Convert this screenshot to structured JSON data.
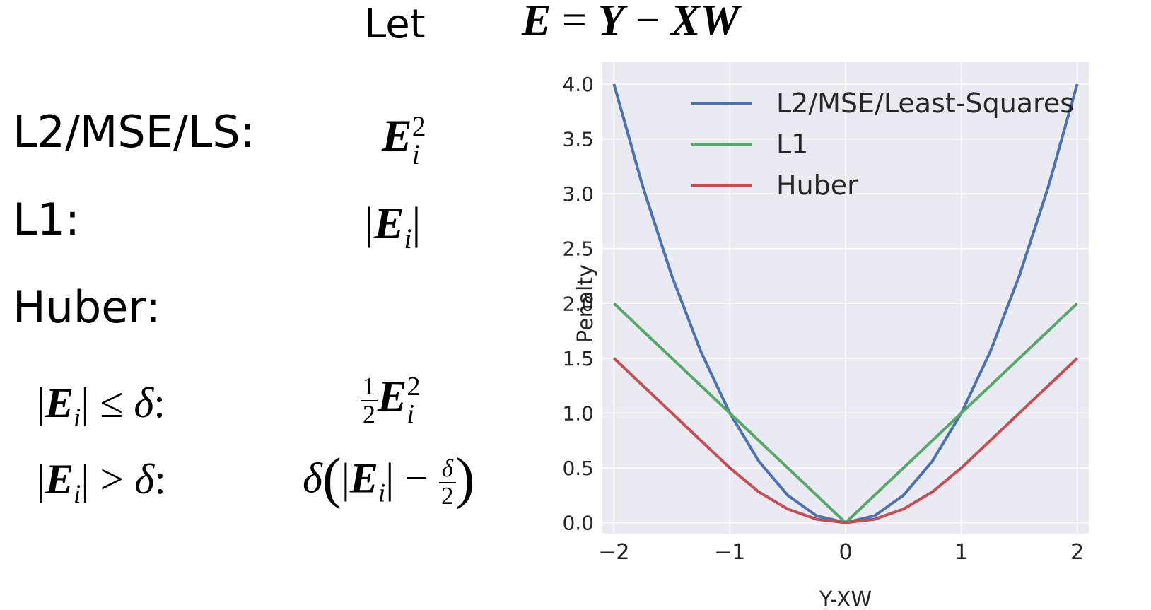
{
  "header": {
    "let_label": "Let",
    "equation": {
      "lhs": "E",
      "eq": "=",
      "y": "Y",
      "minus": "−",
      "xw": "XW"
    }
  },
  "rows": {
    "l2": {
      "label": "L2/MSE/LS:",
      "base": "E",
      "sup": "2",
      "sub": "i"
    },
    "l1": {
      "label": "L1:",
      "bar_open": "|",
      "base": "E",
      "sub": "i",
      "bar_close": "|"
    },
    "huber": {
      "label": "Huber:"
    },
    "case1": {
      "cond_bar_open": "|",
      "cond_base": "E",
      "cond_sub": "i",
      "cond_bar_close": "|",
      "cond_op": "≤",
      "cond_delta": "δ",
      "cond_colon": ":",
      "frac_num": "1",
      "frac_den": "2",
      "base": "E",
      "sup": "2",
      "sub": "i"
    },
    "case2": {
      "cond_bar_open": "|",
      "cond_base": "E",
      "cond_sub": "i",
      "cond_bar_close": "|",
      "cond_op": ">",
      "cond_delta": "δ",
      "cond_colon": ":",
      "delta": "δ",
      "lparen": "(",
      "bar_open": "|",
      "base": "E",
      "sub": "i",
      "bar_close": "|",
      "minus": "−",
      "frac_num": "δ",
      "frac_den": "2",
      "rparen": ")"
    }
  },
  "chart_data": {
    "type": "line",
    "xlabel": "Y-XW",
    "ylabel": "Penalty",
    "xlim": [
      -2.1,
      2.1
    ],
    "ylim": [
      -0.1,
      4.2
    ],
    "xticks": [
      -2,
      -1,
      0,
      1,
      2
    ],
    "xtick_labels": [
      "−2",
      "−1",
      "0",
      "1",
      "2"
    ],
    "yticks": [
      0.0,
      0.5,
      1.0,
      1.5,
      2.0,
      2.5,
      3.0,
      3.5,
      4.0
    ],
    "ytick_labels": [
      "0.0",
      "0.5",
      "1.0",
      "1.5",
      "2.0",
      "2.5",
      "3.0",
      "3.5",
      "4.0"
    ],
    "grid": true,
    "legend_position": "top-left",
    "background": "#eaeaf2",
    "x": [
      -2.0,
      -1.75,
      -1.5,
      -1.25,
      -1.0,
      -0.75,
      -0.5,
      -0.25,
      0.0,
      0.25,
      0.5,
      0.75,
      1.0,
      1.25,
      1.5,
      1.75,
      2.0
    ],
    "series": [
      {
        "name": "L2/MSE/Least-Squares",
        "color": "#4c72b0",
        "values": [
          4.0,
          3.0625,
          2.25,
          1.5625,
          1.0,
          0.5625,
          0.25,
          0.0625,
          0.0,
          0.0625,
          0.25,
          0.5625,
          1.0,
          1.5625,
          2.25,
          3.0625,
          4.0
        ]
      },
      {
        "name": "L1",
        "color": "#55a868",
        "values": [
          2.0,
          1.75,
          1.5,
          1.25,
          1.0,
          0.75,
          0.5,
          0.25,
          0.0,
          0.25,
          0.5,
          0.75,
          1.0,
          1.25,
          1.5,
          1.75,
          2.0
        ]
      },
      {
        "name": "Huber",
        "color": "#c44e52",
        "values": [
          1.5,
          1.25,
          1.0,
          0.75,
          0.5,
          0.28125,
          0.125,
          0.03125,
          0.0,
          0.03125,
          0.125,
          0.28125,
          0.5,
          0.75,
          1.0,
          1.25,
          1.5
        ]
      }
    ]
  }
}
